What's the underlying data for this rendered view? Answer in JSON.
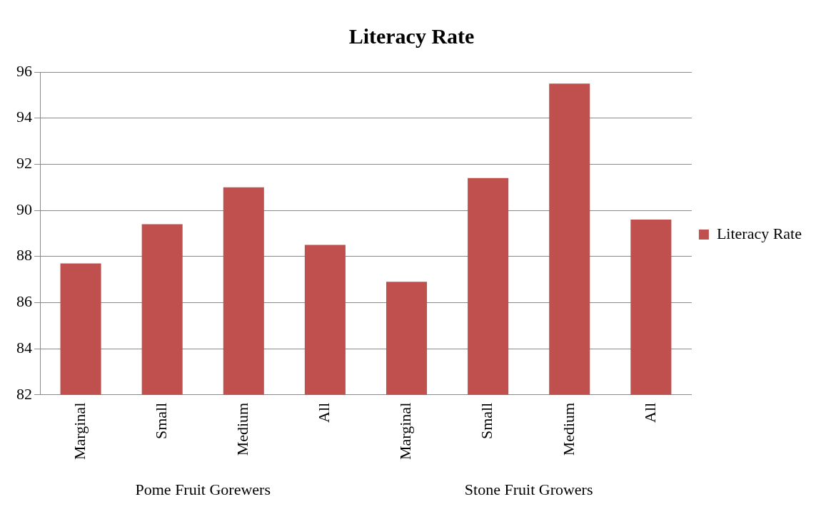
{
  "chart_data": {
    "type": "bar",
    "title": "Literacy Rate",
    "categories": [
      "Marginal",
      "Small",
      "Medium",
      "All",
      "Marginal",
      "Small",
      "Medium",
      "All"
    ],
    "series": [
      {
        "name": "Literacy Rate",
        "color": "#c0504d",
        "values": [
          87.7,
          89.4,
          91.0,
          88.5,
          86.9,
          91.4,
          95.5,
          89.6
        ]
      }
    ],
    "ylim": [
      82,
      96
    ],
    "yticks": [
      82,
      84,
      86,
      88,
      90,
      92,
      94,
      96
    ],
    "grid": "y",
    "legend": "right",
    "annotations": [
      "Pome Fruit Gorewers",
      "Stone Fruit Growers"
    ]
  }
}
